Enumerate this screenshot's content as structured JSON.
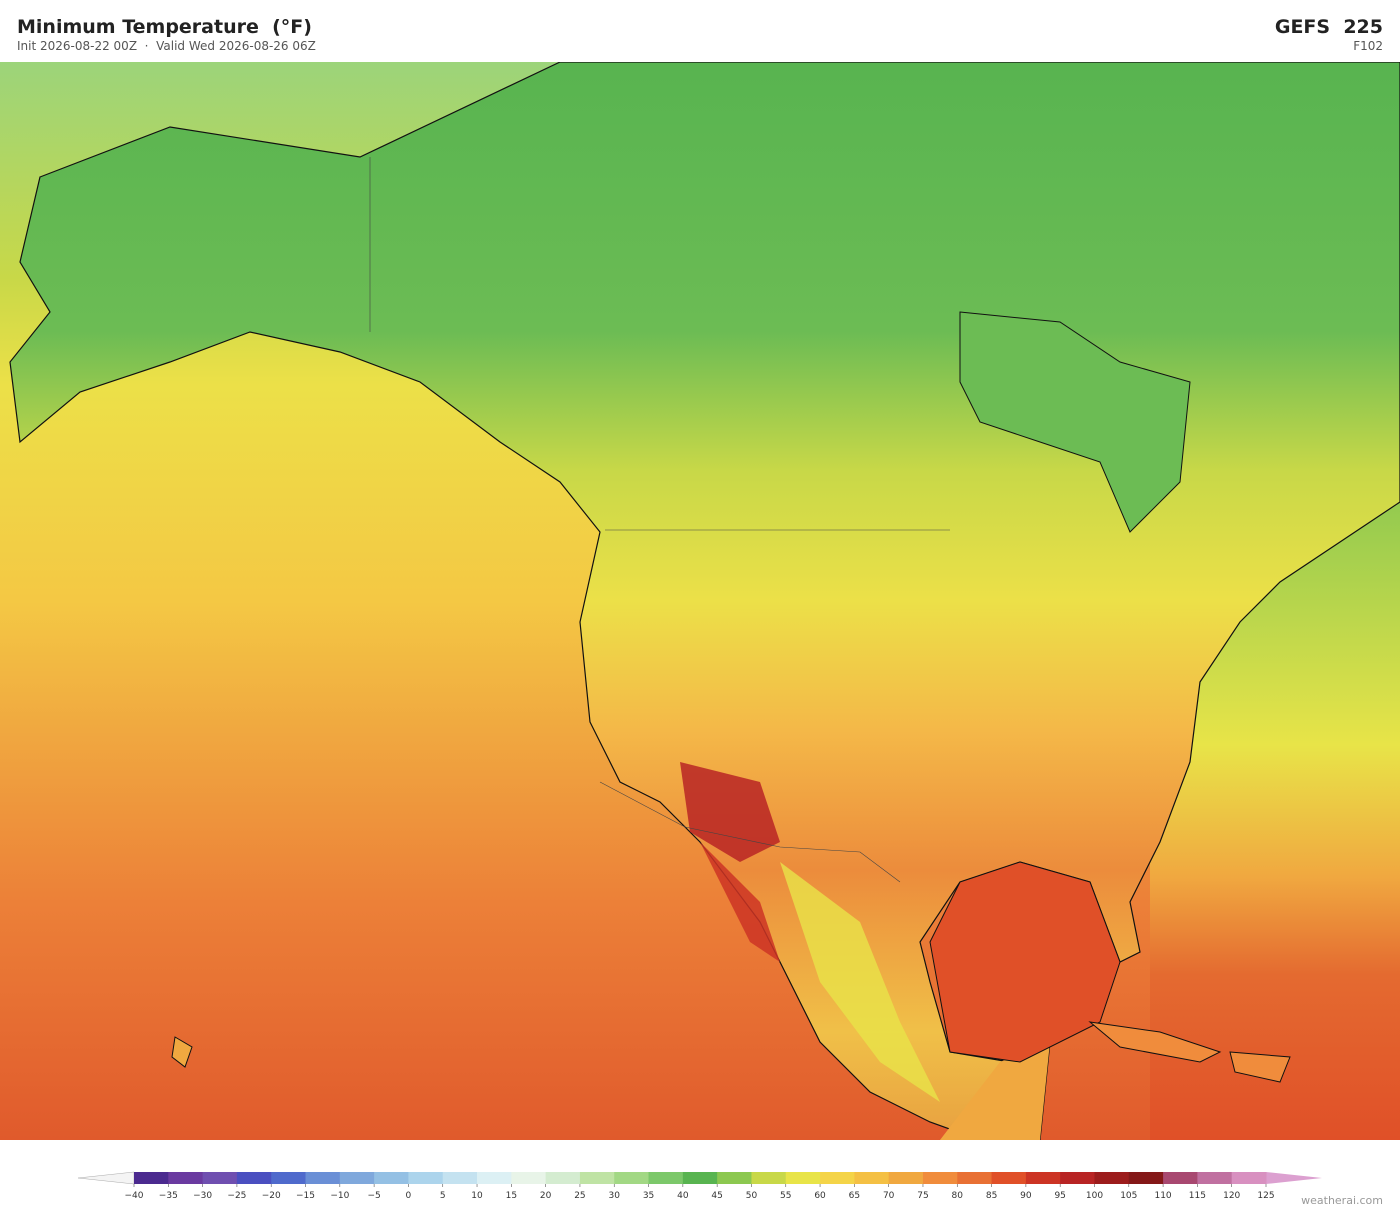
{
  "header": {
    "title": "Minimum Temperature  (°F)",
    "subtitle": "Init 2026-08-22 00Z  ·  Valid Wed 2026-08-26 06Z",
    "model": "GEFS  225",
    "forecast_hour": "F102"
  },
  "colorbar": {
    "ticks": [
      {
        "value": -40,
        "label": "−40"
      },
      {
        "value": -35,
        "label": "−35"
      },
      {
        "value": -30,
        "label": "−30"
      },
      {
        "value": -25,
        "label": "−25"
      },
      {
        "value": -20,
        "label": "−20"
      },
      {
        "value": -15,
        "label": "−15"
      },
      {
        "value": -10,
        "label": "−10"
      },
      {
        "value": -5,
        "label": "−5"
      },
      0,
      5,
      10,
      15,
      20,
      25,
      30,
      35,
      40,
      45,
      50,
      55,
      60,
      65,
      70,
      75,
      80,
      85,
      90,
      95,
      100,
      105,
      110,
      115,
      120,
      125
    ],
    "colors": [
      "#4b2a8f",
      "#6a3aa0",
      "#6f4fb0",
      "#4a4fc0",
      "#4f6acc",
      "#6a8fd6",
      "#7fa8dc",
      "#94c0e4",
      "#acd4ec",
      "#c4e2f0",
      "#dcf0f4",
      "#e8f4e8",
      "#d4ecd0",
      "#bfe3a4",
      "#a2d884",
      "#7cc86a",
      "#58b450",
      "#8cc850",
      "#c8d848",
      "#e8e448",
      "#f4d448",
      "#f4c044",
      "#f0a840",
      "#f08c3c",
      "#e87034",
      "#e05028",
      "#cc3424",
      "#b82424",
      "#9c1c1c",
      "#841818",
      "#a84870",
      "#c070a0",
      "#d890c0"
    ],
    "under_color": "#f4f4f4",
    "over_color": "#dca0d0"
  },
  "watermark": "weatherai.com"
}
